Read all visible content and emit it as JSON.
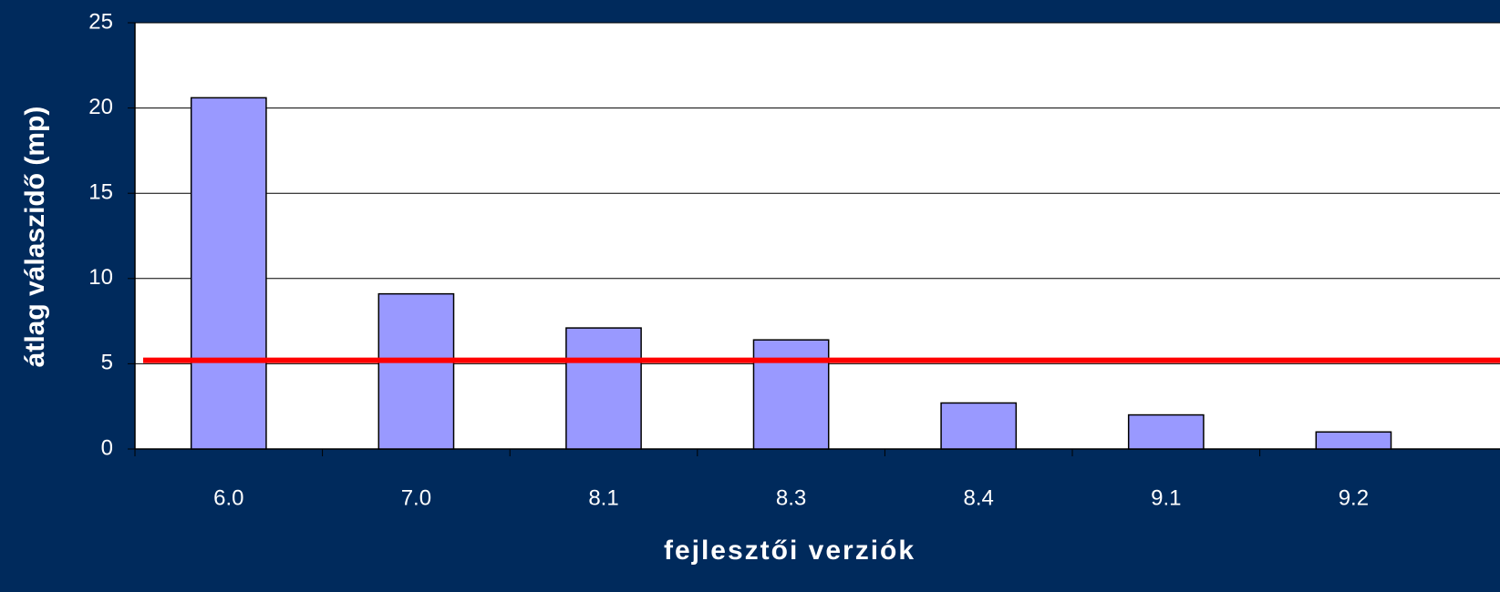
{
  "chart_data": {
    "type": "bar",
    "categories": [
      "6.0",
      "7.0",
      "8.1",
      "8.3",
      "8.4",
      "9.1",
      "9.2"
    ],
    "values": [
      20.6,
      9.1,
      7.1,
      6.4,
      2.7,
      2.0,
      1.0
    ],
    "color": "#9999ff",
    "x_label": "fejlesztői verziók",
    "y_label": "átlag válaszidő (mp)",
    "ylim": [
      0,
      25
    ],
    "yticks": [
      0,
      5,
      10,
      15,
      20,
      25
    ],
    "grid": true,
    "reference_line": {
      "value": 5.2,
      "color": "#ff0000"
    }
  }
}
